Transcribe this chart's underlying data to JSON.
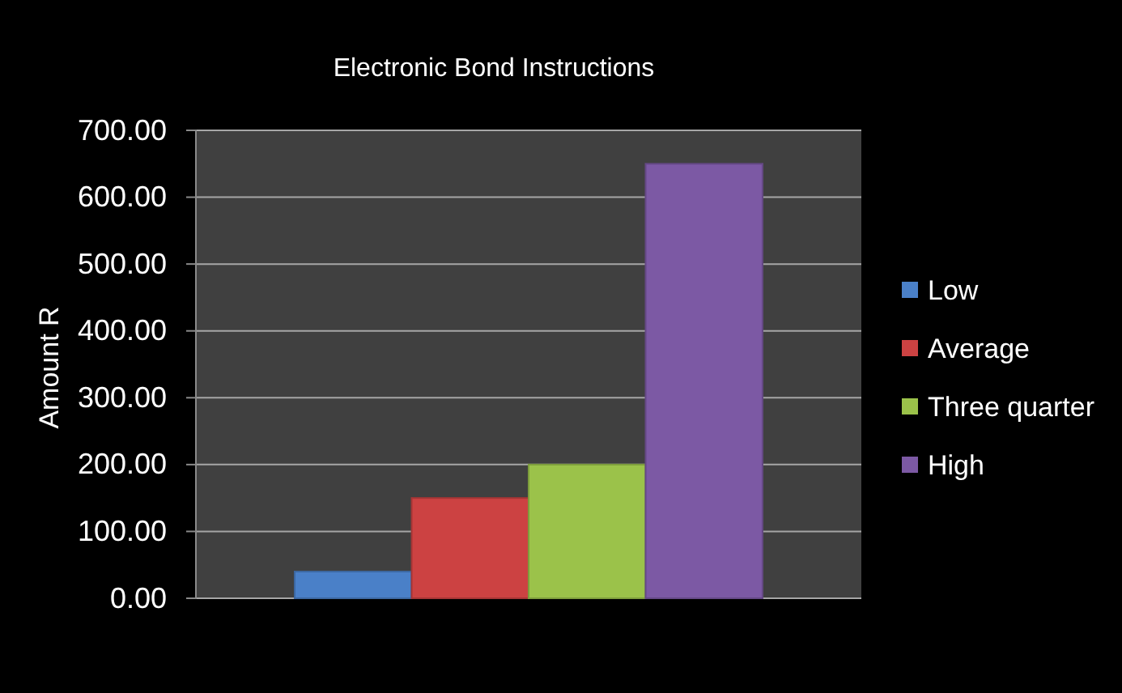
{
  "chart_data": {
    "type": "bar",
    "title": "Electronic Bond Instructions",
    "ylabel": "Amount R",
    "categories": [
      null
    ],
    "series": [
      {
        "name": "Low",
        "color": "#4a80c8",
        "values": [
          40
        ]
      },
      {
        "name": "Average",
        "color": "#cc4242",
        "values": [
          150
        ]
      },
      {
        "name": "Three quarter",
        "color": "#9bc24a",
        "values": [
          200
        ]
      },
      {
        "name": "High",
        "color": "#7c59a4",
        "values": [
          650
        ]
      }
    ],
    "ylim": [
      0,
      700
    ],
    "yticks": [
      {
        "value": 0,
        "label": "0.00"
      },
      {
        "value": 100,
        "label": "100.00"
      },
      {
        "value": 200,
        "label": "200.00"
      },
      {
        "value": 300,
        "label": "300.00"
      },
      {
        "value": 400,
        "label": "400.00"
      },
      {
        "value": 500,
        "label": "500.00"
      },
      {
        "value": 600,
        "label": "600.00"
      },
      {
        "value": 700,
        "label": "700.00"
      }
    ],
    "grid": "y",
    "legend": "right"
  }
}
